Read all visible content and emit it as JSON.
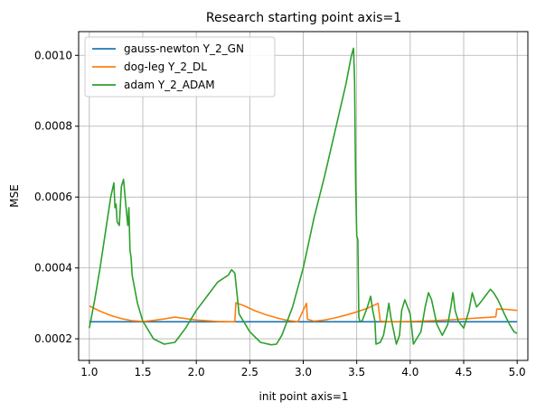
{
  "chart_data": {
    "type": "line",
    "title": "Research starting point axis=1",
    "xlabel": "init point axis=1",
    "ylabel": "MSE",
    "xlim": [
      0.9,
      5.1
    ],
    "ylim": [
      0.000139,
      0.001067
    ],
    "xticks": [
      1.0,
      1.5,
      2.0,
      2.5,
      3.0,
      3.5,
      4.0,
      4.5,
      5.0
    ],
    "xtick_labels": [
      "1.0",
      "1.5",
      "2.0",
      "2.5",
      "3.0",
      "3.5",
      "4.0",
      "4.5",
      "5.0"
    ],
    "yticks": [
      0.0002,
      0.0004,
      0.0006,
      0.0008,
      0.001
    ],
    "ytick_labels": [
      "0.0002",
      "0.0004",
      "0.0006",
      "0.0008",
      "0.0010"
    ],
    "grid": true,
    "legend_position": "top-left",
    "series": [
      {
        "name": "gauss-newton Y_2_GN",
        "color": "#1f77b4",
        "x": [
          1.0,
          5.0
        ],
        "y": [
          0.000248,
          0.000248
        ]
      },
      {
        "name": "dog-leg Y_2_DL",
        "color": "#ff7f0e",
        "x": [
          1.0,
          1.1,
          1.2,
          1.3,
          1.4,
          1.5,
          1.6,
          1.7,
          1.8,
          1.9,
          2.0,
          2.1,
          2.2,
          2.3,
          2.36,
          2.37,
          2.45,
          2.55,
          2.65,
          2.75,
          2.85,
          2.95,
          3.03,
          3.04,
          3.1,
          3.2,
          3.3,
          3.4,
          3.5,
          3.6,
          3.7,
          3.72,
          3.8,
          3.9,
          4.0,
          4.2,
          4.4,
          4.6,
          4.8,
          4.81,
          4.9,
          5.0
        ],
        "y": [
          0.000293,
          0.000278,
          0.000266,
          0.000257,
          0.000251,
          0.000249,
          0.000252,
          0.000256,
          0.000261,
          0.000257,
          0.000253,
          0.000251,
          0.000249,
          0.000248,
          0.000248,
          0.000302,
          0.000293,
          0.000279,
          0.000268,
          0.000259,
          0.000252,
          0.000248,
          0.0003,
          0.000255,
          0.00025,
          0.000253,
          0.000259,
          0.000267,
          0.000276,
          0.000286,
          0.0003,
          0.00025,
          0.000248,
          0.000248,
          0.000249,
          0.000251,
          0.000254,
          0.000258,
          0.000262,
          0.000284,
          0.000283,
          0.00028
        ]
      },
      {
        "name": "adam Y_2_ADAM",
        "color": "#2ca02c",
        "x": [
          1.0,
          1.05,
          1.1,
          1.15,
          1.2,
          1.23,
          1.24,
          1.25,
          1.26,
          1.28,
          1.3,
          1.32,
          1.34,
          1.36,
          1.37,
          1.38,
          1.39,
          1.4,
          1.45,
          1.5,
          1.6,
          1.7,
          1.8,
          1.9,
          2.0,
          2.1,
          2.2,
          2.3,
          2.33,
          2.36,
          2.38,
          2.4,
          2.5,
          2.6,
          2.7,
          2.75,
          2.8,
          2.9,
          3.0,
          3.05,
          3.1,
          3.2,
          3.3,
          3.4,
          3.45,
          3.47,
          3.48,
          3.49,
          3.5,
          3.51,
          3.52,
          3.53,
          3.55,
          3.6,
          3.63,
          3.65,
          3.67,
          3.68,
          3.72,
          3.75,
          3.78,
          3.8,
          3.82,
          3.84,
          3.87,
          3.9,
          3.92,
          3.95,
          4.0,
          4.03,
          4.06,
          4.1,
          4.14,
          4.17,
          4.2,
          4.25,
          4.3,
          4.35,
          4.38,
          4.4,
          4.42,
          4.45,
          4.5,
          4.55,
          4.58,
          4.6,
          4.62,
          4.65,
          4.7,
          4.75,
          4.78,
          4.82,
          4.88,
          4.93,
          4.97,
          5.0
        ],
        "y": [
          0.00023,
          0.00031,
          0.0004,
          0.0005,
          0.0006,
          0.00064,
          0.00057,
          0.00058,
          0.00053,
          0.00052,
          0.00063,
          0.00065,
          0.00058,
          0.00052,
          0.00057,
          0.00045,
          0.00043,
          0.00038,
          0.0003,
          0.00025,
          0.0002,
          0.000185,
          0.00019,
          0.00023,
          0.00028,
          0.00032,
          0.00036,
          0.00038,
          0.000395,
          0.000385,
          0.00033,
          0.00027,
          0.00022,
          0.00019,
          0.000183,
          0.000185,
          0.00021,
          0.00029,
          0.0004,
          0.00047,
          0.00054,
          0.00066,
          0.00079,
          0.00092,
          0.001,
          0.00102,
          0.00093,
          0.00063,
          0.00049,
          0.00048,
          0.00026,
          0.00025,
          0.00025,
          0.00029,
          0.00032,
          0.00028,
          0.00025,
          0.000185,
          0.00019,
          0.00021,
          0.00026,
          0.0003,
          0.00026,
          0.00023,
          0.000185,
          0.00021,
          0.00028,
          0.00031,
          0.00027,
          0.000185,
          0.0002,
          0.00022,
          0.00029,
          0.00033,
          0.00031,
          0.00024,
          0.00021,
          0.00024,
          0.00029,
          0.00033,
          0.00028,
          0.00025,
          0.00023,
          0.00028,
          0.00033,
          0.00031,
          0.00029,
          0.0003,
          0.00032,
          0.00034,
          0.00033,
          0.00031,
          0.00027,
          0.00024,
          0.00022,
          0.000215
        ]
      }
    ]
  }
}
